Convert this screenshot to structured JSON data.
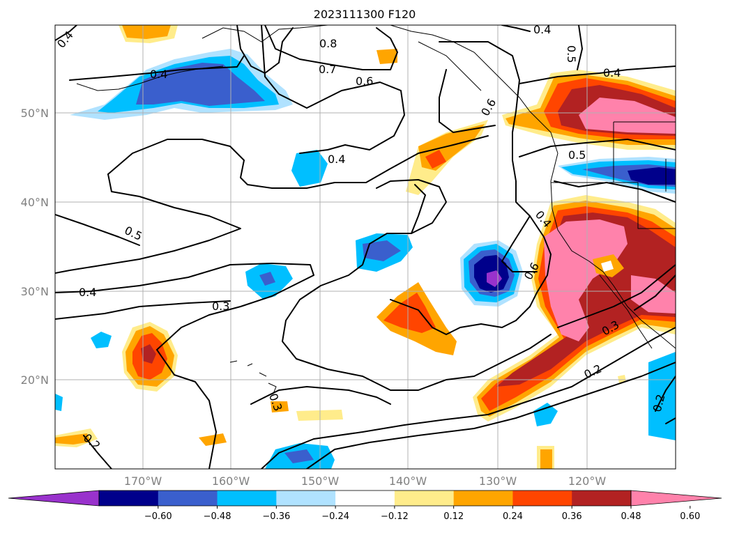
{
  "title": "2023111300 F120",
  "map": {
    "lat_ticks": [
      "50°N",
      "40°N",
      "30°N",
      "20°N"
    ],
    "lon_ticks": [
      "170°W",
      "160°W",
      "150°W",
      "140°W",
      "130°W",
      "120°W"
    ],
    "contour_labels": [
      "0.4",
      "0.4",
      "0.8",
      "0.7",
      "0.6",
      "0.6",
      "0.4",
      "0.5",
      "0.4",
      "0.4",
      "0.5",
      "0.4",
      "0.3",
      "0.5",
      "0.6",
      "0.3",
      "0.2",
      "0.2",
      "0.2",
      "0.3",
      "0.4"
    ]
  },
  "colorbar": {
    "ticks": [
      "−0.60",
      "−0.48",
      "−0.36",
      "−0.24",
      "−0.12",
      "0.12",
      "0.24",
      "0.36",
      "0.48",
      "0.60"
    ],
    "colors": [
      "#9932cc",
      "#00008b",
      "#3a5fcd",
      "#00bfff",
      "#b0e2ff",
      "#ffffff",
      "#ffec8b",
      "#ffa500",
      "#ff4500",
      "#b22222",
      "#ff82ab"
    ]
  }
}
